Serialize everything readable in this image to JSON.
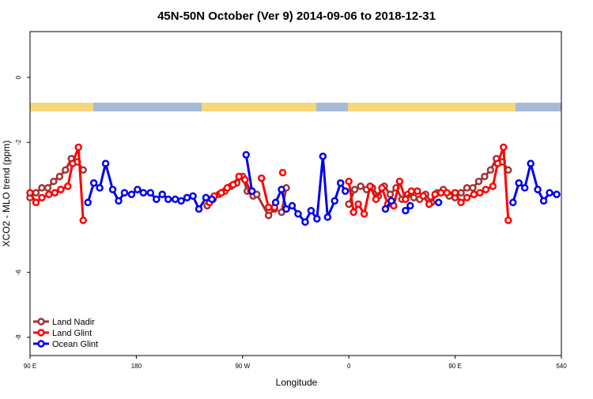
{
  "chart_data": {
    "type": "line",
    "title": "45N-50N October (Ver 9)   2014-09-06 to 2018-12-31",
    "x_label": "Longitude",
    "y_label": "XCO2 - MLO trend (ppm)",
    "xlim": [
      90,
      540
    ],
    "xticks": [
      {
        "value": 90,
        "label": "90 E"
      },
      180,
      {
        "value": 270,
        "label": "90 W"
      },
      {
        "value": 360,
        "label": "0"
      },
      {
        "value": 450,
        "label": "90 E"
      },
      540
    ],
    "ylim": [
      -8.56,
      1.41
    ],
    "yticks": [
      0,
      -2,
      -6,
      -8
    ],
    "legend": "bottom-left",
    "series": [
      {
        "name": "Land Nadir",
        "color": "#a03535",
        "x": [
          90,
          95,
          100,
          105,
          110,
          115,
          120,
          125,
          130,
          135,
          null,
          240,
          245,
          250,
          255,
          260,
          265,
          270,
          274,
          279,
          null,
          282,
          292,
          297,
          null,
          303,
          307,
          null,
          360,
          365,
          370,
          375,
          380,
          385,
          390,
          395,
          400,
          405,
          410,
          415,
          420,
          425,
          430,
          435,
          440,
          445,
          450,
          455,
          460,
          465,
          470,
          475,
          480,
          485,
          490,
          495
        ],
        "values": [
          -3.7,
          -3.55,
          -3.4,
          -3.4,
          -3.2,
          -3.05,
          -2.85,
          -2.5,
          -2.6,
          -2.85,
          null,
          -3.95,
          -3.75,
          -3.6,
          -3.5,
          -3.35,
          -3.25,
          -3.05,
          -3.5,
          -3.65,
          null,
          -3.6,
          -4.25,
          -4.05,
          null,
          -4.15,
          -3.4,
          null,
          -3.9,
          -3.45,
          -3.35,
          -3.45,
          -3.4,
          -3.65,
          -3.35,
          -3.6,
          -3.4,
          -3.75,
          -3.6,
          -3.7,
          -3.75,
          -3.6,
          -3.85,
          -3.55,
          -3.45,
          -3.65,
          -3.7,
          -3.55,
          -3.4,
          -3.4,
          -3.2,
          -3.05,
          -2.85,
          -2.5,
          -2.6,
          -2.85
        ]
      },
      {
        "name": "Land Glint",
        "color": "#ff0000",
        "x": [
          90,
          95,
          100,
          106,
          111,
          116,
          122,
          126,
          131,
          135,
          null,
          242,
          246,
          252,
          257,
          262,
          267,
          272,
          277,
          null,
          286,
          292,
          297,
          null,
          304,
          null,
          360,
          364,
          368,
          373,
          378,
          383,
          388,
          393,
          398,
          403,
          408,
          413,
          418,
          423,
          428,
          433,
          438,
          443,
          450,
          455,
          460,
          466,
          471,
          476,
          482,
          486,
          491,
          495
        ],
        "values": [
          -3.55,
          -3.85,
          -3.7,
          -3.6,
          -3.55,
          -3.45,
          -3.35,
          -2.65,
          -2.15,
          -4.4,
          null,
          -3.85,
          -3.65,
          -3.55,
          -3.4,
          -3.3,
          -3.05,
          -3.15,
          -3.5,
          null,
          -3.1,
          -4.0,
          -4.0,
          null,
          -2.93,
          null,
          -3.2,
          -4.15,
          -3.9,
          -4.2,
          -3.35,
          -3.75,
          -3.4,
          -3.9,
          -3.95,
          -3.2,
          -3.75,
          -3.5,
          -3.5,
          -3.65,
          -3.9,
          -3.6,
          -3.55,
          -3.55,
          -3.55,
          -3.85,
          -3.7,
          -3.6,
          -3.55,
          -3.45,
          -3.35,
          -2.65,
          -2.15,
          -4.4
        ]
      },
      {
        "name": "Ocean Glint",
        "color": "#0000ee",
        "x": [
          139,
          144,
          149,
          154,
          160,
          165,
          170,
          176,
          181,
          186,
          192,
          197,
          202,
          207,
          213,
          218,
          223,
          228,
          233,
          239,
          244,
          null,
          273,
          278,
          null,
          298,
          303,
          307,
          312,
          317,
          323,
          328,
          333,
          338,
          342,
          348,
          353,
          357,
          null,
          391,
          396,
          null,
          408,
          412,
          null,
          436,
          null,
          499,
          504,
          509,
          514,
          520,
          525,
          530,
          536
        ],
        "values": [
          -3.85,
          -3.25,
          -3.4,
          -2.65,
          -3.45,
          -3.8,
          -3.55,
          -3.6,
          -3.45,
          -3.55,
          -3.55,
          -3.75,
          -3.6,
          -3.75,
          -3.75,
          -3.8,
          -3.7,
          -3.65,
          -4.05,
          -3.7,
          -3.75,
          null,
          -2.38,
          -3.5,
          null,
          -3.85,
          -3.45,
          -4.05,
          -3.95,
          -4.2,
          -4.45,
          -4.1,
          -4.35,
          -2.43,
          -4.3,
          -3.8,
          -3.25,
          -3.5,
          null,
          -4.05,
          -3.8,
          null,
          -4.1,
          -3.95,
          null,
          -3.85,
          null,
          -3.85,
          -3.25,
          -3.4,
          -2.65,
          -3.45,
          -3.8,
          -3.55,
          -3.6
        ]
      }
    ]
  }
}
